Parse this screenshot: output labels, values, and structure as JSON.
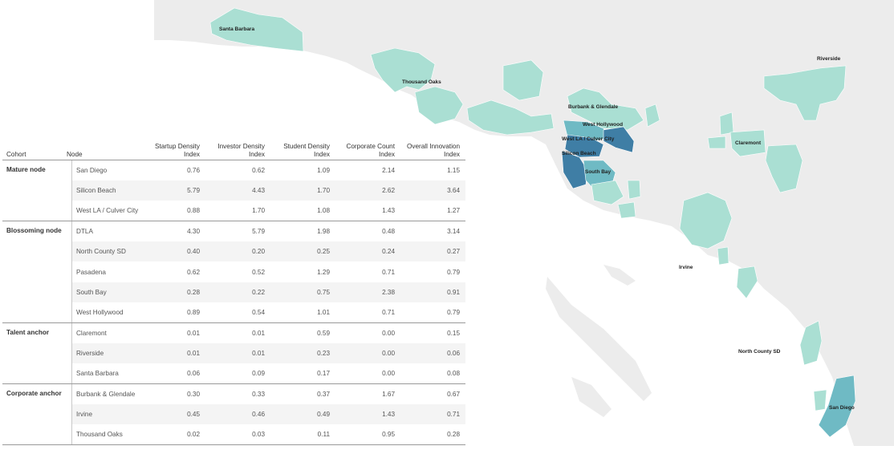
{
  "map": {
    "labels": {
      "santa_barbara": "Santa Barbara",
      "riverside": "Riverside",
      "thousand_oaks": "Thousand Oaks",
      "burbank_glendale": "Burbank & Glendale",
      "west_hollywood": "West Hollywood",
      "west_la": "West LA / Culver City",
      "silicon_beach": "Silicon Beach",
      "claremont": "Claremont",
      "south_bay": "South Bay",
      "irvine": "Irvine",
      "north_county_sd": "North County SD",
      "san_diego": "San Diego"
    },
    "colors": {
      "land": "#ececec",
      "ocean": "#ffffff",
      "light": "#aadfd3",
      "mid": "#6fbac4",
      "dark": "#3f7ea5"
    }
  },
  "table": {
    "headers": {
      "cohort": "Cohort",
      "node": "Node",
      "startup_line1": "Startup Density",
      "startup_line2": "Index",
      "investor_line1": "Investor Density",
      "investor_line2": "Index",
      "student_line1": "Student Density",
      "student_line2": "Index",
      "corporate_line1": "Corporate Count",
      "corporate_line2": "Index",
      "overall_line1": "Overall Innovation",
      "overall_line2": "Index"
    },
    "rows": [
      {
        "cohort": "Mature node",
        "node": "San Diego",
        "startup": "0.76",
        "investor": "0.62",
        "student": "1.09",
        "corporate": "2.14",
        "overall": "1.15"
      },
      {
        "cohort": "",
        "node": "Silicon Beach",
        "startup": "5.79",
        "investor": "4.43",
        "student": "1.70",
        "corporate": "2.62",
        "overall": "3.64"
      },
      {
        "cohort": "",
        "node": "West LA / Culver City",
        "startup": "0.88",
        "investor": "1.70",
        "student": "1.08",
        "corporate": "1.43",
        "overall": "1.27"
      },
      {
        "cohort": "Blossoming node",
        "node": "DTLA",
        "startup": "4.30",
        "investor": "5.79",
        "student": "1.98",
        "corporate": "0.48",
        "overall": "3.14"
      },
      {
        "cohort": "",
        "node": "North County SD",
        "startup": "0.40",
        "investor": "0.20",
        "student": "0.25",
        "corporate": "0.24",
        "overall": "0.27"
      },
      {
        "cohort": "",
        "node": "Pasadena",
        "startup": "0.62",
        "investor": "0.52",
        "student": "1.29",
        "corporate": "0.71",
        "overall": "0.79"
      },
      {
        "cohort": "",
        "node": "South Bay",
        "startup": "0.28",
        "investor": "0.22",
        "student": "0.75",
        "corporate": "2.38",
        "overall": "0.91"
      },
      {
        "cohort": "",
        "node": "West Hollywood",
        "startup": "0.89",
        "investor": "0.54",
        "student": "1.01",
        "corporate": "0.71",
        "overall": "0.79"
      },
      {
        "cohort": "Talent anchor",
        "node": "Claremont",
        "startup": "0.01",
        "investor": "0.01",
        "student": "0.59",
        "corporate": "0.00",
        "overall": "0.15"
      },
      {
        "cohort": "",
        "node": "Riverside",
        "startup": "0.01",
        "investor": "0.01",
        "student": "0.23",
        "corporate": "0.00",
        "overall": "0.06"
      },
      {
        "cohort": "",
        "node": "Santa Barbara",
        "startup": "0.06",
        "investor": "0.09",
        "student": "0.17",
        "corporate": "0.00",
        "overall": "0.08"
      },
      {
        "cohort": "Corporate anchor",
        "node": "Burbank & Glendale",
        "startup": "0.30",
        "investor": "0.33",
        "student": "0.37",
        "corporate": "1.67",
        "overall": "0.67"
      },
      {
        "cohort": "",
        "node": "Irvine",
        "startup": "0.45",
        "investor": "0.46",
        "student": "0.49",
        "corporate": "1.43",
        "overall": "0.71"
      },
      {
        "cohort": "",
        "node": "Thousand Oaks",
        "startup": "0.02",
        "investor": "0.03",
        "student": "0.11",
        "corporate": "0.95",
        "overall": "0.28"
      }
    ]
  }
}
